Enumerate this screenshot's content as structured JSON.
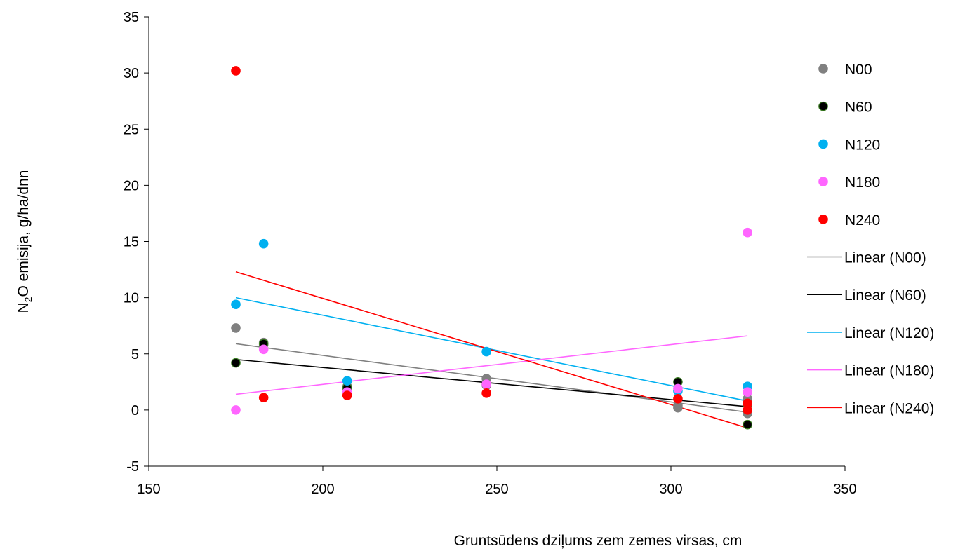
{
  "chart_data": {
    "type": "scatter",
    "title": "",
    "xlabel": "Gruntsūdens dziļums zem zemes virsas, cm",
    "ylabel_main": "N",
    "ylabel_sub": "2",
    "ylabel_rest": "O emisija, g/ha/dnn",
    "xlim": [
      150,
      350
    ],
    "ylim": [
      -5,
      35
    ],
    "xticks": [
      150,
      200,
      250,
      300,
      350
    ],
    "yticks": [
      -5,
      0,
      5,
      10,
      15,
      20,
      25,
      30,
      35
    ],
    "xtick_labels": [
      "150",
      "200",
      "250",
      "300",
      "350"
    ],
    "ytick_labels": [
      "-5",
      "0",
      "5",
      "10",
      "15",
      "20",
      "25",
      "30",
      "35"
    ],
    "grid": false,
    "legend_position": "right",
    "series": [
      {
        "name": "N00",
        "color": "#808080",
        "stroke": "#808080",
        "points": [
          [
            175,
            7.3
          ],
          [
            183,
            6.0
          ],
          [
            183,
            5.8
          ],
          [
            207,
            2.1
          ],
          [
            207,
            1.9
          ],
          [
            247,
            2.8
          ],
          [
            247,
            2.2
          ],
          [
            302,
            0.4
          ],
          [
            302,
            0.2
          ],
          [
            322,
            1.0
          ],
          [
            322,
            0.6
          ],
          [
            322,
            -0.3
          ]
        ]
      },
      {
        "name": "N60",
        "color": "#000000",
        "stroke": "#3a7d22",
        "points": [
          [
            175,
            4.2
          ],
          [
            183,
            5.9
          ],
          [
            207,
            2.0
          ],
          [
            247,
            2.3
          ],
          [
            302,
            2.5
          ],
          [
            322,
            0.5
          ],
          [
            322,
            -1.3
          ]
        ]
      },
      {
        "name": "N120",
        "color": "#00b0f0",
        "stroke": "#00b0f0",
        "points": [
          [
            175,
            9.4
          ],
          [
            183,
            14.8
          ],
          [
            207,
            2.6
          ],
          [
            247,
            5.2
          ],
          [
            302,
            1.7
          ],
          [
            322,
            2.1
          ]
        ]
      },
      {
        "name": "N180",
        "color": "#ff66ff",
        "stroke": "#ff66ff",
        "points": [
          [
            175,
            0.0
          ],
          [
            183,
            5.4
          ],
          [
            207,
            1.6
          ],
          [
            247,
            2.3
          ],
          [
            302,
            1.9
          ],
          [
            322,
            15.8
          ],
          [
            322,
            1.6
          ]
        ]
      },
      {
        "name": "N240",
        "color": "#ff0000",
        "stroke": "#ff0000",
        "points": [
          [
            175,
            30.2
          ],
          [
            183,
            1.1
          ],
          [
            207,
            1.3
          ],
          [
            247,
            1.5
          ],
          [
            302,
            1.0
          ],
          [
            322,
            0.6
          ],
          [
            322,
            0.0
          ]
        ]
      }
    ],
    "trendlines": [
      {
        "name": "Linear (N00)",
        "color": "#808080",
        "x": [
          175,
          322
        ],
        "y": [
          5.9,
          -0.2
        ]
      },
      {
        "name": "Linear (N60)",
        "color": "#000000",
        "x": [
          175,
          322
        ],
        "y": [
          4.5,
          0.3
        ]
      },
      {
        "name": "Linear (N120)",
        "color": "#00b0f0",
        "x": [
          175,
          322
        ],
        "y": [
          10.0,
          0.8
        ]
      },
      {
        "name": "Linear (N180)",
        "color": "#ff66ff",
        "x": [
          175,
          322
        ],
        "y": [
          1.4,
          6.6
        ]
      },
      {
        "name": "Linear (N240)",
        "color": "#ff0000",
        "x": [
          175,
          322
        ],
        "y": [
          12.3,
          -1.6
        ]
      }
    ]
  }
}
